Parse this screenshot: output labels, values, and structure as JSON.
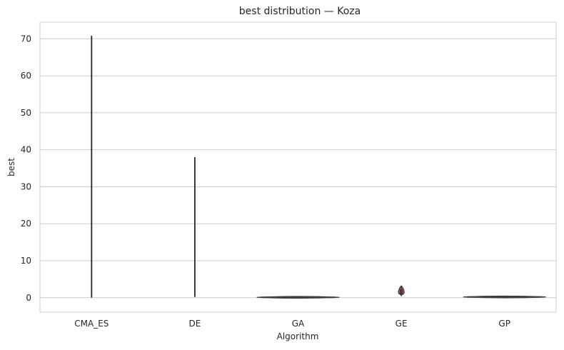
{
  "chart_data": {
    "type": "violin",
    "title": "best distribution — Koza",
    "xlabel": "Algorithm",
    "ylabel": "best",
    "categories": [
      "CMA_ES",
      "DE",
      "GA",
      "GE",
      "GP"
    ],
    "ylim": [
      -3.9,
      74.5
    ],
    "yticks": [
      0,
      10,
      20,
      30,
      40,
      50,
      60,
      70
    ],
    "grid": true,
    "violins": [
      {
        "category": "CMA_ES",
        "min": 0.0,
        "max": 70.8,
        "spread": "near-zero",
        "color": "#4c72b0"
      },
      {
        "category": "DE",
        "min": 0.2,
        "max": 38.0,
        "spread": "near-zero",
        "color": "#dd8452"
      },
      {
        "category": "GA",
        "min": 0.0,
        "max": 0.2,
        "spread": "wide",
        "color": "#55a868"
      },
      {
        "category": "GE",
        "min": 0.6,
        "max": 3.2,
        "median": 1.5,
        "spread": "narrow",
        "color": "#c44e52"
      },
      {
        "category": "GP",
        "min": 0.0,
        "max": 0.4,
        "spread": "wide",
        "color": "#8172b3"
      }
    ]
  }
}
